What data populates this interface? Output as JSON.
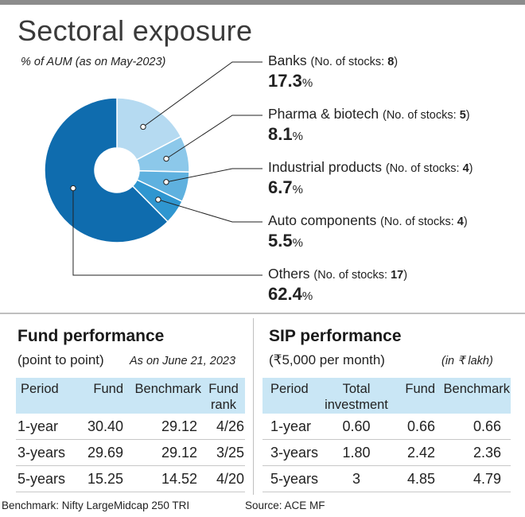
{
  "title": "Sectoral exposure",
  "subtitle": "% of AUM (as on May-2023)",
  "chart_data": {
    "type": "pie",
    "style": "donut",
    "categories": [
      "Banks",
      "Pharma & biotech",
      "Industrial products",
      "Auto components",
      "Others"
    ],
    "values": [
      17.3,
      8.1,
      6.7,
      5.5,
      62.4
    ],
    "value_labels": [
      "17.3",
      "8.1",
      "6.7",
      "5.5",
      "62.4"
    ],
    "unit": "%",
    "count_prefix": "(No. of stocks: ",
    "stock_counts": [
      "8",
      "5",
      "4",
      "4",
      "17"
    ],
    "colors": [
      "#b5daf1",
      "#8cc8ea",
      "#5fb1df",
      "#2f96d0",
      "#0f6cae"
    ]
  },
  "fund_performance": {
    "title": "Fund performance",
    "subtitle": "(point to point)",
    "note": "As on June 21, 2023",
    "headers": [
      "Period",
      "Fund",
      "Benchmark",
      "Fund rank"
    ],
    "rows": [
      [
        "1-year",
        "30.40",
        "29.12",
        "4/26"
      ],
      [
        "3-years",
        "29.69",
        "29.12",
        "3/25"
      ],
      [
        "5-years",
        "15.25",
        "14.52",
        "4/20"
      ]
    ]
  },
  "sip_performance": {
    "title": "SIP performance",
    "subtitle": "(₹5,000 per month)",
    "note": "(in ₹ lakh)",
    "headers": [
      "Period",
      "Total investment",
      "Fund",
      "Benchmark"
    ],
    "rows": [
      [
        "1-year",
        "0.60",
        "0.66",
        "0.66"
      ],
      [
        "3-years",
        "1.80",
        "2.42",
        "2.36"
      ],
      [
        "5-years",
        "3",
        "4.85",
        "4.79"
      ]
    ]
  },
  "footer": {
    "benchmark": "Benchmark: Nifty LargeMidcap 250 TRI",
    "source": "Source: ACE MF"
  }
}
